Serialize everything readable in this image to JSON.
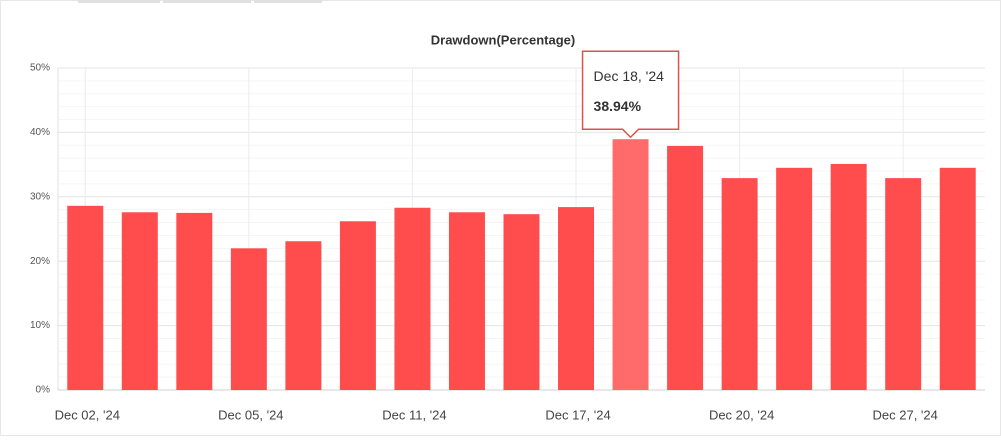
{
  "chart_data": {
    "type": "bar",
    "title": "Drawdown(Percentage)",
    "categories": [
      "Dec 02, '24",
      null,
      null,
      "Dec 05, '24",
      null,
      null,
      "Dec 11, '24",
      null,
      null,
      "Dec 17, '24",
      null,
      null,
      "Dec 20, '24",
      null,
      null,
      "Dec 27, '24",
      null
    ],
    "values": [
      28.6,
      27.6,
      27.5,
      22.0,
      23.1,
      26.2,
      28.3,
      27.6,
      27.3,
      28.4,
      38.94,
      37.9,
      32.9,
      34.5,
      35.1,
      32.9,
      34.5
    ],
    "value_labels": [
      null,
      null,
      null,
      null,
      null,
      null,
      null,
      null,
      null,
      null,
      "38.94%",
      null,
      null,
      null,
      null,
      null,
      null
    ],
    "tooltip": {
      "title": "Dec 18, '24"
    },
    "color": "#ff4d4d",
    "highlight_color": "#ff6b6b",
    "ylim": [
      0,
      50
    ],
    "yticks": [
      {
        "value": 0,
        "label": "0%"
      },
      {
        "value": 10,
        "label": "10%"
      },
      {
        "value": 20,
        "label": "20%"
      },
      {
        "value": 30,
        "label": "30%"
      },
      {
        "value": 40,
        "label": "40%"
      },
      {
        "value": 50,
        "label": "50%"
      }
    ],
    "grid": true
  }
}
